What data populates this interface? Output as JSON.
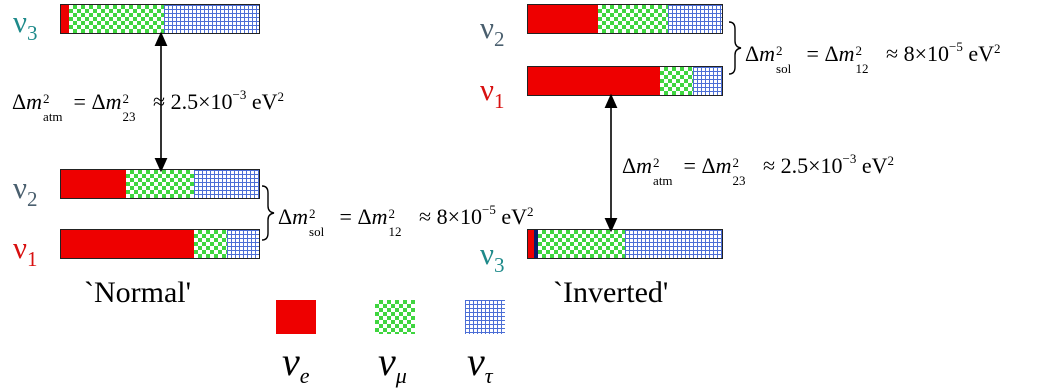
{
  "normal": {
    "title": "`Normal'",
    "states": [
      {
        "label_sym": "ν",
        "label_idx": "3",
        "fractions": {
          "e": 0.04,
          "mu": 0.48,
          "tau": 0.48
        }
      },
      {
        "label_sym": "ν",
        "label_idx": "2",
        "fractions": {
          "e": 0.33,
          "mu": 0.34,
          "tau": 0.33
        }
      },
      {
        "label_sym": "ν",
        "label_idx": "1",
        "fractions": {
          "e": 0.67,
          "mu": 0.17,
          "tau": 0.16
        }
      }
    ],
    "atm": {
      "delta": "Δ",
      "m": "m",
      "sq": "2",
      "sub_atm": "atm",
      "eq": " = Δ",
      "sub23": "23",
      "approx": " ≈ 2.5×10",
      "exp": "−3",
      "unit": "eV",
      "unitexp": "2"
    },
    "sol": {
      "delta": "Δ",
      "m": "m",
      "sq": "2",
      "sub_sol": "sol",
      "eq": " = Δ",
      "sub12": "12",
      "approx": " ≈ 8×10",
      "exp": "−5",
      "unit": "eV",
      "unitexp": "2"
    }
  },
  "inverted": {
    "title": "`Inverted'",
    "states": [
      {
        "label_sym": "ν",
        "label_idx": "2",
        "fractions": {
          "e": 0.36,
          "mu": 0.36,
          "tau": 0.28
        }
      },
      {
        "label_sym": "ν",
        "label_idx": "1",
        "fractions": {
          "e": 0.68,
          "mu": 0.17,
          "tau": 0.15
        }
      },
      {
        "label_sym": "ν",
        "label_idx": "3",
        "fractions": {
          "e": 0.03,
          "blk": 0.02,
          "mu": 0.45,
          "tau": 0.5
        }
      }
    ]
  },
  "legend": {
    "e": {
      "sym": "ν",
      "sub": "e"
    },
    "mu": {
      "sym": "ν",
      "sub": "μ"
    },
    "tau": {
      "sym": "ν",
      "sub": "τ"
    }
  },
  "colors": {
    "e": "#ee0000",
    "mu": "#3fd63f",
    "tau": "#4d6fd6"
  }
}
